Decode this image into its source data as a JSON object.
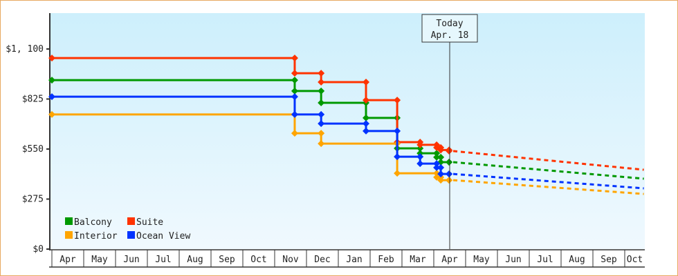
{
  "chart_data": {
    "type": "line",
    "title": "",
    "xlabel": "",
    "ylabel": "",
    "ylim": [
      0,
      1100
    ],
    "y_ticks": [
      "$0",
      "$275",
      "$550",
      "$825",
      "$1, 100"
    ],
    "y_tick_values": [
      0,
      275,
      550,
      825,
      1100
    ],
    "x_ticks": [
      "Apr",
      "May",
      "Jun",
      "Jul",
      "Aug",
      "Sep",
      "Oct",
      "Nov",
      "Dec",
      "Jan",
      "Feb",
      "Mar",
      "Apr",
      "May",
      "Jun",
      "Jul",
      "Aug",
      "Sep",
      "Oct"
    ],
    "x_unit": "months since start of April (year 1)",
    "today": {
      "label": "Today",
      "date": "Apr. 18",
      "x": 12.5
    },
    "forecast_end_x": 18.6,
    "legend": {
      "placement": "bottom-left"
    },
    "series": [
      {
        "name": "Balcony",
        "color": "#009900",
        "points": [
          [
            0,
            929
          ],
          [
            7.63,
            869
          ],
          [
            8.46,
            804
          ],
          [
            9.87,
            721
          ],
          [
            10.85,
            554
          ],
          [
            11.57,
            527
          ],
          [
            12.09,
            505
          ],
          [
            12.22,
            478
          ],
          [
            12.48,
            478
          ]
        ],
        "forecast": 387
      },
      {
        "name": "Suite",
        "color": "#ff3300",
        "points": [
          [
            0,
            1050
          ],
          [
            7.63,
            967
          ],
          [
            8.46,
            918
          ],
          [
            9.87,
            819
          ],
          [
            10.85,
            588
          ],
          [
            11.57,
            573
          ],
          [
            12.09,
            558
          ],
          [
            12.22,
            545
          ],
          [
            12.48,
            539
          ]
        ],
        "forecast": 436
      },
      {
        "name": "Interior",
        "color": "#ffa500",
        "points": [
          [
            0,
            740
          ],
          [
            7.63,
            637
          ],
          [
            8.46,
            580
          ],
          [
            10.85,
            417
          ],
          [
            12.09,
            395
          ],
          [
            12.22,
            379
          ],
          [
            12.48,
            379
          ]
        ],
        "forecast": 303
      },
      {
        "name": "Ocean View",
        "color": "#0033ff",
        "points": [
          [
            0,
            838
          ],
          [
            7.63,
            740
          ],
          [
            8.46,
            690
          ],
          [
            9.87,
            649
          ],
          [
            10.85,
            508
          ],
          [
            11.57,
            470
          ],
          [
            12.09,
            448
          ],
          [
            12.22,
            413
          ],
          [
            12.48,
            413
          ]
        ],
        "forecast": 334
      }
    ]
  }
}
